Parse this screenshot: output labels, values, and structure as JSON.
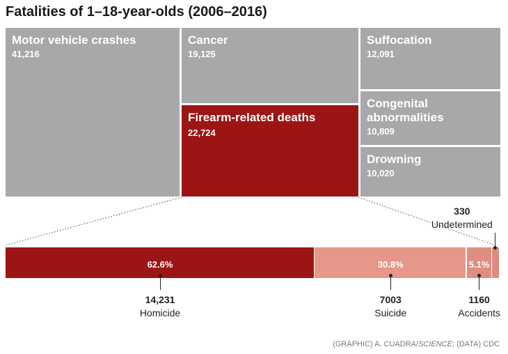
{
  "title": "Fatalities of 1–18-year-olds (2006–2016)",
  "colors": {
    "gray": "#a7a8aa",
    "firearm": "#9c1515",
    "homicide": "#9c1515",
    "suicide": "#e7978a",
    "accidents": "#df8d81",
    "undetermined": "#e08a7f"
  },
  "credit": {
    "prefix": "(GRAPHIC) A. CUADRA/",
    "italic": "SCIENCE",
    "suffix": "; (DATA) CDC"
  },
  "chart_data": [
    {
      "type": "treemap",
      "items": [
        {
          "label": "Motor vehicle crashes",
          "value_text": "41,216",
          "value": 41216
        },
        {
          "label": "Cancer",
          "value_text": "19,125",
          "value": 19125
        },
        {
          "label": "Firearm-related deaths",
          "value_text": "22,724",
          "value": 22724
        },
        {
          "label": "Suffocation",
          "value_text": "12,091",
          "value": 12091
        },
        {
          "label": "Congenital abnormalities",
          "value_text": "10,809",
          "value": 10809
        },
        {
          "label": "Drowning",
          "value_text": "10,020",
          "value": 10020
        }
      ]
    },
    {
      "type": "bar",
      "stacked": true,
      "categories": [
        "Homicide",
        "Suicide",
        "Accidents",
        "Undetermined"
      ],
      "values": [
        14231,
        7003,
        1160,
        330
      ],
      "value_texts": [
        "14,231",
        "7003",
        "1160",
        "330"
      ],
      "percent_labels": [
        "62.6%",
        "30.8%",
        "5.1%",
        ""
      ]
    }
  ]
}
